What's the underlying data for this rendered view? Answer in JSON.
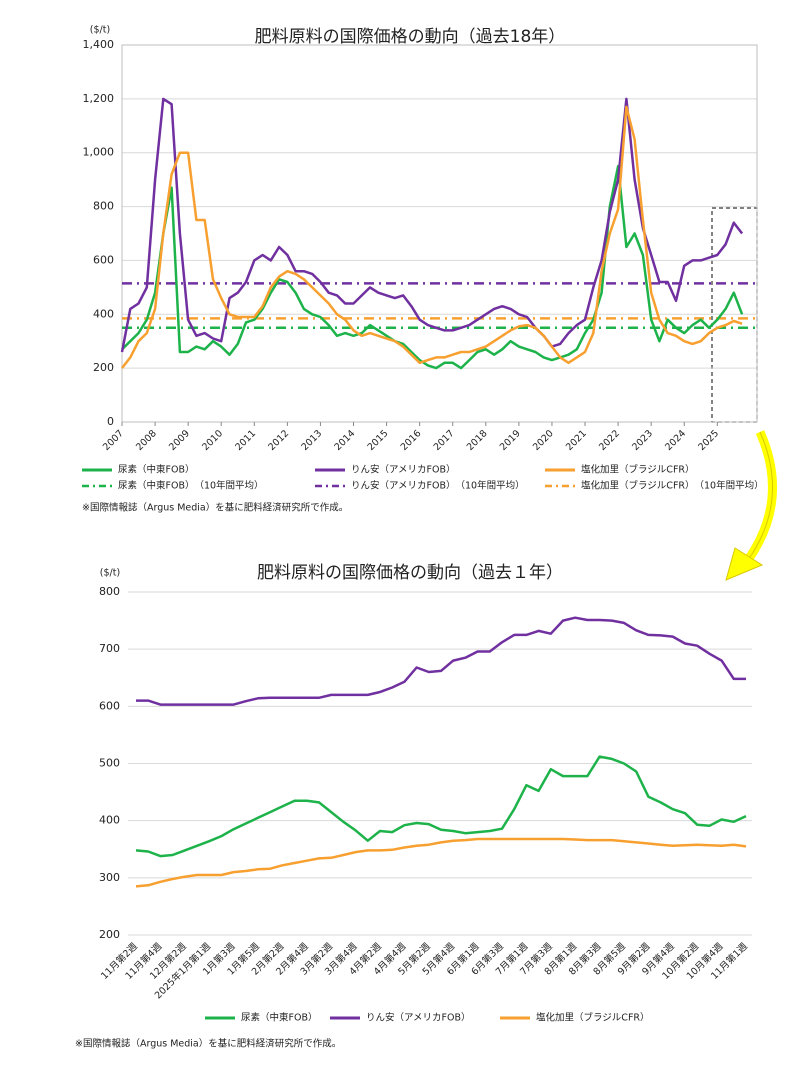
{
  "chart_data": [
    {
      "type": "line",
      "title": "肥料原料の国際価格の動向（過去18年）",
      "y_label": "($/t)",
      "note": "※国際情報誌（Argus Media）を基に肥料経済研究所で作成。",
      "x": [
        2007,
        2007.25,
        2007.5,
        2007.75,
        2008,
        2008.25,
        2008.5,
        2008.75,
        2009,
        2009.25,
        2009.5,
        2009.75,
        2010,
        2010.25,
        2010.5,
        2010.75,
        2011,
        2011.25,
        2011.5,
        2011.75,
        2012,
        2012.25,
        2012.5,
        2012.75,
        2013,
        2013.25,
        2013.5,
        2013.75,
        2014,
        2014.25,
        2014.5,
        2014.75,
        2015,
        2015.25,
        2015.5,
        2015.75,
        2016,
        2016.25,
        2016.5,
        2016.75,
        2017,
        2017.25,
        2017.5,
        2017.75,
        2018,
        2018.25,
        2018.5,
        2018.75,
        2019,
        2019.25,
        2019.5,
        2019.75,
        2020,
        2020.25,
        2020.5,
        2020.75,
        2021,
        2021.25,
        2021.5,
        2021.75,
        2022,
        2022.25,
        2022.5,
        2022.75,
        2023,
        2023.25,
        2023.5,
        2023.75,
        2024,
        2024.25,
        2024.5,
        2024.75,
        2025,
        2025.25,
        2025.5,
        2025.75
      ],
      "xlim": [
        2007,
        2026.2
      ],
      "xticks": [
        2007,
        2008,
        2009,
        2010,
        2011,
        2012,
        2013,
        2014,
        2015,
        2016,
        2017,
        2018,
        2019,
        2020,
        2021,
        2022,
        2023,
        2024,
        2025
      ],
      "ylim": [
        0,
        1400
      ],
      "yticks": [
        0,
        200,
        400,
        600,
        800,
        {
          "value": 1000,
          "label": "1,000"
        },
        {
          "value": 1200,
          "label": "1,200"
        },
        {
          "value": 1400,
          "label": "1,400"
        }
      ],
      "grid": true,
      "series": [
        {
          "name": "尿素（中東FOB）",
          "color": "#1db34a",
          "values": [
            270,
            300,
            330,
            380,
            480,
            700,
            870,
            260,
            260,
            280,
            270,
            300,
            280,
            250,
            290,
            370,
            380,
            420,
            480,
            530,
            520,
            480,
            420,
            400,
            390,
            360,
            320,
            330,
            320,
            330,
            360,
            340,
            320,
            300,
            290,
            260,
            230,
            210,
            200,
            220,
            220,
            200,
            230,
            260,
            270,
            250,
            270,
            300,
            280,
            270,
            260,
            240,
            230,
            240,
            250,
            270,
            330,
            380,
            480,
            800,
            950,
            650,
            700,
            620,
            380,
            300,
            380,
            350,
            330,
            360,
            380,
            350,
            380,
            420,
            480,
            400
          ]
        },
        {
          "name": "りん安（アメリカFOB）",
          "color": "#7030a0",
          "values": [
            260,
            420,
            440,
            500,
            900,
            1200,
            1180,
            700,
            380,
            320,
            330,
            310,
            300,
            460,
            480,
            520,
            600,
            620,
            600,
            650,
            620,
            560,
            560,
            550,
            520,
            480,
            470,
            440,
            440,
            470,
            500,
            480,
            470,
            460,
            470,
            430,
            380,
            360,
            350,
            340,
            340,
            350,
            360,
            380,
            400,
            420,
            430,
            420,
            400,
            390,
            350,
            320,
            280,
            290,
            330,
            360,
            380,
            500,
            600,
            780,
            900,
            1200,
            900,
            720,
            620,
            520,
            520,
            450,
            580,
            600,
            600,
            610,
            620,
            660,
            740,
            700
          ]
        },
        {
          "name": "塩化加里（ブラジルCFR）",
          "color": "#f7a030",
          "values": [
            200,
            240,
            300,
            330,
            420,
            700,
            920,
            1000,
            1000,
            750,
            750,
            530,
            460,
            400,
            390,
            390,
            390,
            430,
            500,
            540,
            560,
            550,
            530,
            500,
            470,
            440,
            400,
            380,
            340,
            320,
            330,
            320,
            310,
            300,
            280,
            250,
            220,
            230,
            240,
            240,
            250,
            260,
            260,
            270,
            280,
            300,
            320,
            340,
            355,
            360,
            350,
            320,
            280,
            240,
            220,
            240,
            260,
            330,
            560,
            700,
            790,
            1170,
            1050,
            750,
            480,
            380,
            330,
            320,
            300,
            290,
            300,
            330,
            350,
            360,
            375,
            365
          ]
        }
      ],
      "averages": [
        {
          "name": "尿素（中東FOB）　（10年間平均）",
          "color": "#1db34a",
          "value": 350
        },
        {
          "name": "りん安（アメリカFOB）　（10年間平均）",
          "color": "#7030a0",
          "value": 515
        },
        {
          "name": "塩化加里（ブラジルCFR）　（10年間平均）",
          "color": "#f7a030",
          "value": 385
        }
      ]
    },
    {
      "type": "line",
      "title": "肥料原料の国際価格の動向（過去１年）",
      "y_label": "($/t)",
      "note": "※国際情報誌（Argus Media）を基に肥料経済研究所で作成。",
      "categories": [
        "11月第2週",
        null,
        "11月第4週",
        null,
        "12月第2週",
        null,
        "2025年1月第1週",
        null,
        "1月第3週",
        null,
        "1月第5週",
        null,
        "2月第2週",
        null,
        "2月第4週",
        null,
        "3月第2週",
        null,
        "3月第4週",
        null,
        "4月第2週",
        null,
        "4月第4週",
        null,
        "5月第2週",
        null,
        "5月第4週",
        null,
        "6月第1週",
        null,
        "6月第3週",
        null,
        "7月第1週",
        null,
        "7月第3週",
        null,
        "8月第1週",
        null,
        "8月第3週",
        null,
        "8月第5週",
        null,
        "9月第2週",
        null,
        "9月第4週",
        null,
        "10月第2週",
        null,
        "10月第4週",
        null,
        "11月第1週"
      ],
      "ylim": [
        200,
        800
      ],
      "yticks": [
        200,
        300,
        400,
        500,
        600,
        700,
        800
      ],
      "grid": true,
      "series": [
        {
          "name": "尿素（中東FOB）",
          "color": "#1db34a",
          "values": [
            348,
            346,
            338,
            340,
            348,
            356,
            364,
            373,
            385,
            395,
            405,
            415,
            425,
            435,
            435,
            432,
            415,
            398,
            383,
            365,
            382,
            380,
            392,
            396,
            394,
            384,
            382,
            378,
            380,
            382,
            386,
            420,
            462,
            452,
            490,
            478,
            478,
            478,
            512,
            508,
            500,
            486,
            442,
            432,
            420,
            413,
            393,
            391,
            402,
            398,
            408
          ]
        },
        {
          "name": "りん安（アメリカFOB）",
          "color": "#7030a0",
          "values": [
            610,
            610,
            603,
            603,
            603,
            603,
            603,
            603,
            603,
            609,
            614,
            615,
            615,
            615,
            615,
            615,
            620,
            620,
            620,
            620,
            625,
            633,
            643,
            668,
            660,
            662,
            680,
            685,
            696,
            696,
            712,
            725,
            725,
            732,
            727,
            750,
            755,
            751,
            751,
            750,
            746,
            733,
            725,
            724,
            722,
            710,
            706,
            692,
            680,
            648,
            648
          ]
        },
        {
          "name": "塩化加里（ブラジルCFR）",
          "color": "#f7a030",
          "values": [
            285,
            287,
            293,
            298,
            302,
            305,
            305,
            305,
            310,
            312,
            315,
            316,
            322,
            326,
            330,
            334,
            335,
            340,
            345,
            348,
            348,
            349,
            353,
            356,
            358,
            362,
            365,
            366,
            368,
            368,
            368,
            368,
            368,
            368,
            368,
            368,
            367,
            366,
            366,
            366,
            364,
            362,
            360,
            358,
            356,
            357,
            358,
            357,
            356,
            358,
            355
          ]
        }
      ]
    }
  ]
}
